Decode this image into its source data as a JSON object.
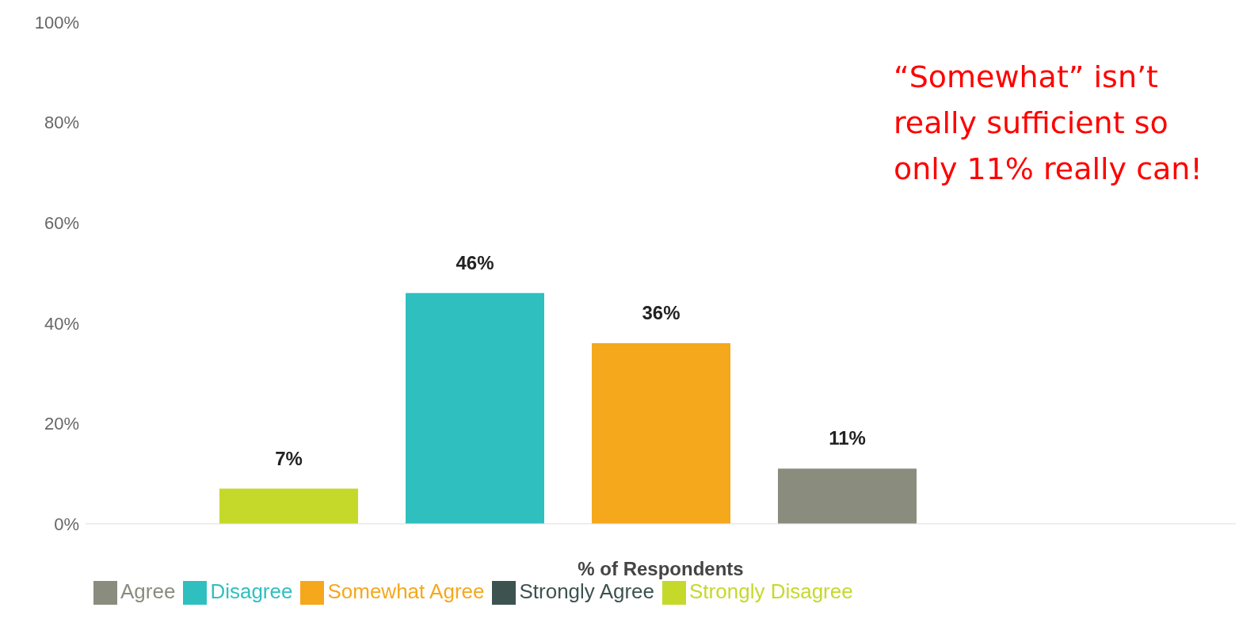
{
  "chart_data": {
    "type": "bar",
    "categories": [
      null
    ],
    "xlabel": "% of Respondents",
    "series": [
      {
        "name": "Strongly Disagree",
        "color": "#c5d92b",
        "values": [
          7
        ],
        "value_labels": [
          "7%"
        ]
      },
      {
        "name": "Disagree",
        "color": "#2fbfbf",
        "values": [
          46
        ],
        "value_labels": [
          "46%"
        ]
      },
      {
        "name": "Somewhat Agree",
        "color": "#f5a81c",
        "values": [
          36
        ],
        "value_labels": [
          "36%"
        ]
      },
      {
        "name": "Agree",
        "color": "#8a8c7e",
        "values": [
          11
        ],
        "value_labels": [
          "11%"
        ]
      },
      {
        "name": "Strongly Agree",
        "color": "#3d5350",
        "values": [
          0
        ],
        "value_labels": [
          null
        ]
      }
    ],
    "ylim": [
      0,
      100
    ],
    "yticks": [
      {
        "value": 0,
        "label": "0%"
      },
      {
        "value": 20,
        "label": "20%"
      },
      {
        "value": 40,
        "label": "40%"
      },
      {
        "value": 60,
        "label": "60%"
      },
      {
        "value": 80,
        "label": "80%"
      },
      {
        "value": 100,
        "label": "100%"
      }
    ],
    "legend": "bottom",
    "annotations": [
      "“Somewhat” isn’t really sufficient so only 11% really can!"
    ]
  }
}
